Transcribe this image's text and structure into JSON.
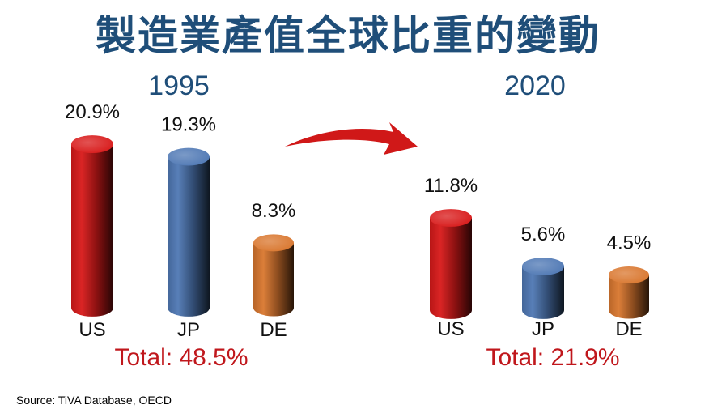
{
  "title": "製造業產值全球比重的變動",
  "source": "Source: TiVA Database, OECD",
  "colors": {
    "title": "#1f4e79",
    "US": "#d81a1a",
    "JP": "#4f78b4",
    "DE": "#d9772f",
    "total": "#c0171c",
    "arrow": "#d01818"
  },
  "chart_data": {
    "type": "bar",
    "style": "3d-cylinder",
    "categories": [
      "US",
      "JP",
      "DE"
    ],
    "unit": "%",
    "panels": [
      {
        "year": "1995",
        "values": [
          20.9,
          19.3,
          8.3
        ],
        "labels": [
          "20.9%",
          "19.3%",
          "8.3%"
        ],
        "total_label": "Total: 48.5%"
      },
      {
        "year": "2020",
        "values": [
          11.8,
          5.6,
          4.5
        ],
        "labels": [
          "11.8%",
          "5.6%",
          "4.5%"
        ],
        "total_label": "Total: 21.9%"
      }
    ],
    "annotation": "arrow-from-1995-to-2020"
  }
}
